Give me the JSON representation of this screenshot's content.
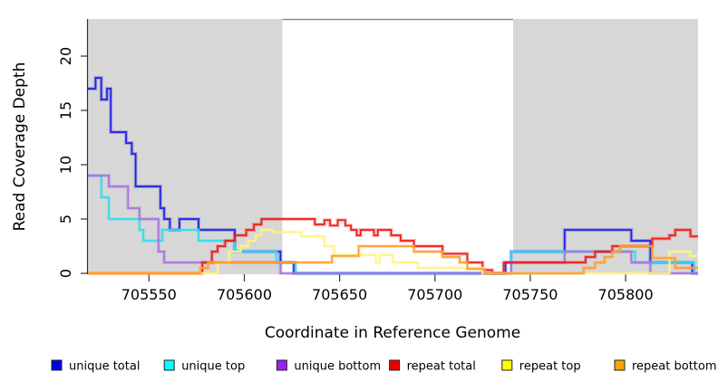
{
  "chart_data": {
    "type": "line",
    "subtype": "step-after",
    "title": "",
    "xlabel": "Coordinate in Reference Genome",
    "ylabel": "Read Coverage Depth",
    "xlim": [
      705518,
      705838
    ],
    "ylim": [
      0,
      23.4
    ],
    "x_ticks": [
      705550,
      705600,
      705650,
      705700,
      705750,
      705800
    ],
    "y_ticks": [
      0,
      5,
      10,
      15,
      20
    ],
    "grid": false,
    "legend_position": "bottom",
    "plot_bg": "#ffffff",
    "region_color": "#d7d7d7",
    "shaded_regions": [
      {
        "x1": 705518,
        "x2": 705620
      },
      {
        "x1": 705741,
        "x2": 705838
      }
    ],
    "top_rule": {
      "x1": 705620,
      "x2": 705741,
      "color": "#8c8c8c"
    },
    "series": [
      {
        "name": "unique total",
        "legend_color": "#0000EE",
        "line_color": "#2222E0",
        "steps": [
          [
            705518,
            17
          ],
          [
            705522,
            18
          ],
          [
            705525,
            16
          ],
          [
            705528,
            17
          ],
          [
            705530,
            13
          ],
          [
            705538,
            12
          ],
          [
            705541,
            11
          ],
          [
            705543,
            8
          ],
          [
            705556,
            6
          ],
          [
            705558,
            5
          ],
          [
            705561,
            4
          ],
          [
            705566,
            5
          ],
          [
            705576,
            4
          ],
          [
            705595,
            2
          ],
          [
            705619,
            1
          ],
          [
            705626,
            0
          ],
          [
            705737,
            1
          ],
          [
            705740,
            2
          ],
          [
            705768,
            4
          ],
          [
            705803,
            3
          ],
          [
            705813,
            1
          ],
          [
            705835,
            0
          ]
        ]
      },
      {
        "name": "unique top",
        "legend_color": "#00FFFF",
        "line_color": "#33DDEE",
        "steps": [
          [
            705518,
            9
          ],
          [
            705525,
            7
          ],
          [
            705529,
            5
          ],
          [
            705545,
            4
          ],
          [
            705547,
            3
          ],
          [
            705557,
            4
          ],
          [
            705576,
            3
          ],
          [
            705595,
            2
          ],
          [
            705617,
            1
          ],
          [
            705627,
            0
          ],
          [
            705740,
            2
          ],
          [
            705805,
            1
          ],
          [
            705836,
            0
          ]
        ]
      },
      {
        "name": "unique bottom",
        "legend_color": "#A020F0",
        "line_color": "#A875DC",
        "steps": [
          [
            705518,
            9
          ],
          [
            705529,
            8
          ],
          [
            705539,
            6
          ],
          [
            705545,
            5
          ],
          [
            705555,
            2
          ],
          [
            705558,
            1
          ],
          [
            705619,
            0
          ],
          [
            705740,
            1
          ],
          [
            705768,
            2
          ],
          [
            705803,
            1
          ],
          [
            705813,
            0
          ]
        ]
      },
      {
        "name": "repeat total",
        "legend_color": "#EE0000",
        "line_color": "#EE1C1C",
        "steps": [
          [
            705518,
            0
          ],
          [
            705578,
            1
          ],
          [
            705583,
            2
          ],
          [
            705586,
            2.5
          ],
          [
            705590,
            3
          ],
          [
            705595,
            3.5
          ],
          [
            705601,
            4
          ],
          [
            705605,
            4.5
          ],
          [
            705609,
            5
          ],
          [
            705637,
            4.5
          ],
          [
            705642,
            4.9
          ],
          [
            705645,
            4.4
          ],
          [
            705649,
            4.9
          ],
          [
            705653,
            4.4
          ],
          [
            705656,
            4
          ],
          [
            705659,
            3.5
          ],
          [
            705661,
            4
          ],
          [
            705668,
            3.5
          ],
          [
            705670,
            4
          ],
          [
            705677,
            3.5
          ],
          [
            705682,
            3
          ],
          [
            705689,
            2.5
          ],
          [
            705704,
            1.8
          ],
          [
            705717,
            1
          ],
          [
            705725,
            0.3
          ],
          [
            705730,
            0
          ],
          [
            705736,
            1
          ],
          [
            705779,
            1.5
          ],
          [
            705784,
            2
          ],
          [
            705793,
            2.5
          ],
          [
            705814,
            3.2
          ],
          [
            705823,
            3.5
          ],
          [
            705826,
            4
          ],
          [
            705834,
            3.4
          ]
        ]
      },
      {
        "name": "repeat top",
        "legend_color": "#FFFF00",
        "line_color": "#FFF480",
        "steps": [
          [
            705518,
            0
          ],
          [
            705586,
            1
          ],
          [
            705592,
            2
          ],
          [
            705598,
            2.5
          ],
          [
            705602,
            3
          ],
          [
            705606,
            3.5
          ],
          [
            705609,
            4
          ],
          [
            705615,
            3.8
          ],
          [
            705630,
            3.4
          ],
          [
            705642,
            2.5
          ],
          [
            705647,
            1.7
          ],
          [
            705669,
            1
          ],
          [
            705671,
            1.7
          ],
          [
            705678,
            1
          ],
          [
            705691,
            0.5
          ],
          [
            705725,
            0
          ],
          [
            705823,
            2
          ],
          [
            705834,
            1.6
          ]
        ]
      },
      {
        "name": "repeat bottom",
        "legend_color": "#FFA500",
        "line_color": "#FF9D2E",
        "steps": [
          [
            705518,
            0
          ],
          [
            705577,
            0.5
          ],
          [
            705581,
            1
          ],
          [
            705646,
            1.6
          ],
          [
            705660,
            2.5
          ],
          [
            705689,
            2
          ],
          [
            705704,
            1.5
          ],
          [
            705713,
            1
          ],
          [
            705717,
            0.4
          ],
          [
            705726,
            0
          ],
          [
            705778,
            0.5
          ],
          [
            705784,
            1
          ],
          [
            705789,
            1.5
          ],
          [
            705793,
            2
          ],
          [
            705797,
            2.5
          ],
          [
            705814,
            1.4
          ],
          [
            705826,
            0.5
          ]
        ]
      }
    ]
  }
}
